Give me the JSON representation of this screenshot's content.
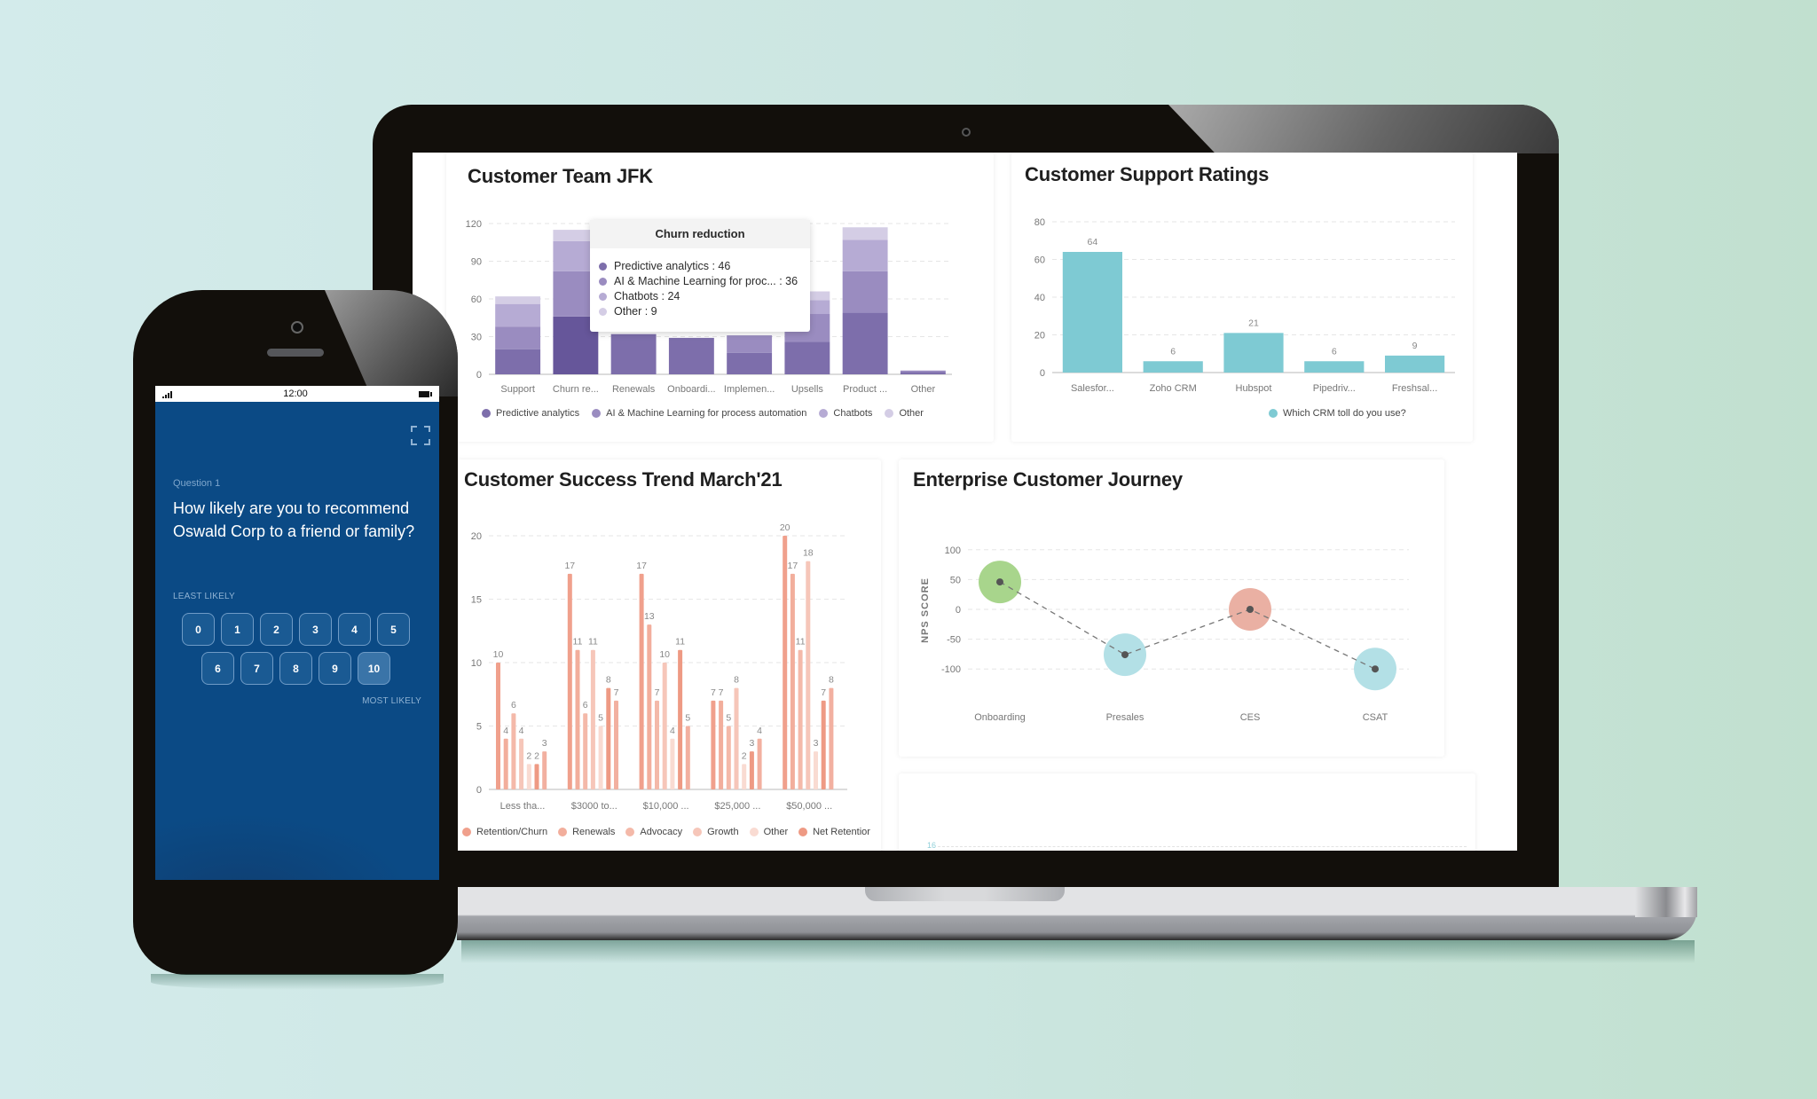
{
  "phone": {
    "status_bar": {
      "time": "12:00"
    },
    "question_label": "Question 1",
    "question_text": "How likely are you to recommend Oswald Corp to a friend or family?",
    "least_label": "LEAST LIKELY",
    "most_label": "MOST LIKELY",
    "scale": [
      "0",
      "1",
      "2",
      "3",
      "4",
      "5",
      "6",
      "7",
      "8",
      "9",
      "10"
    ],
    "selected": "10",
    "icons": {
      "signal": "signal-bars-icon",
      "battery": "battery-icon",
      "expand": "expand-fullscreen-icon"
    }
  },
  "dashboard": {
    "jfk": {
      "title": "Customer Team JFK",
      "tooltip": {
        "title": "Churn reduction",
        "lines": [
          "Predictive analytics : 46",
          "AI & Machine Learning for proc... : 36",
          "Chatbots : 24",
          "Other : 9"
        ]
      },
      "legend": [
        "Predictive analytics",
        "AI & Machine Learning for process automation",
        "Chatbots",
        "Other"
      ]
    },
    "support": {
      "title": "Customer Support Ratings",
      "legend": [
        "Which CRM toll do you use?"
      ]
    },
    "trend": {
      "title": "Customer Success Trend March'21",
      "legend": [
        "Retention/Churn",
        "Renewals",
        "Advocacy",
        "Growth",
        "Other",
        "Net Retentior"
      ]
    },
    "journey": {
      "title": "Enterprise Customer Journey",
      "ylabel": "NPS SCORE"
    },
    "partial_card": {
      "tick": "16"
    }
  },
  "colors": {
    "purple": [
      "#7d6eab",
      "#9a8cc0",
      "#b6abd4",
      "#d4cde5"
    ],
    "purple_active": "#66569a",
    "teal": "#7ecad3",
    "salmon": [
      "#f0a08c",
      "#f2ae9c",
      "#f4b9a9",
      "#f6c6b9",
      "#f9dbd2",
      "#ee9a84",
      "#f2b0a0"
    ],
    "journey": [
      "#a8d58c",
      "#b3e0e6",
      "#eab0a3",
      "#b3e0e6"
    ],
    "phone_bg": "#0b4a85"
  },
  "chart_data": [
    {
      "type": "bar",
      "stacked": true,
      "title": "Customer Team JFK",
      "categories": [
        "Support",
        "Churn re...",
        "Renewals",
        "Onboardi...",
        "Implemen...",
        "Upsells",
        "Product ...",
        "Other"
      ],
      "series": [
        {
          "name": "Predictive analytics",
          "values": [
            20,
            46,
            32,
            29,
            17,
            26,
            49,
            2
          ]
        },
        {
          "name": "AI & Machine Learning for process automation",
          "values": [
            18,
            36,
            0,
            0,
            14,
            22,
            33,
            1
          ]
        },
        {
          "name": "Chatbots",
          "values": [
            18,
            24,
            0,
            0,
            0,
            11,
            25,
            0
          ]
        },
        {
          "name": "Other",
          "values": [
            6,
            9,
            0,
            0,
            0,
            7,
            10,
            0
          ]
        }
      ],
      "yticks": [
        0,
        30,
        60,
        90,
        120
      ],
      "ylim": [
        0,
        120
      ],
      "grid": true,
      "legend_position": "bottom",
      "highlight": "Churn re..."
    },
    {
      "type": "bar",
      "title": "Customer Support Ratings",
      "categories": [
        "Salesfor...",
        "Zoho CRM",
        "Hubspot",
        "Pipedriv...",
        "Freshsal..."
      ],
      "series": [
        {
          "name": "Which CRM toll do you use?",
          "values": [
            64,
            6,
            21,
            6,
            9
          ]
        }
      ],
      "yticks": [
        0,
        20,
        40,
        60,
        80
      ],
      "ylim": [
        0,
        80
      ],
      "grid": true,
      "data_labels": true,
      "legend_position": "bottom"
    },
    {
      "type": "bar",
      "title": "Customer Success Trend March'21",
      "categories": [
        "Less tha...",
        "$3000 to...",
        "$10,000 ...",
        "$25,000 ...",
        "$50,000 ..."
      ],
      "series": [
        {
          "name": "Retention/Churn",
          "values": [
            10,
            17,
            17,
            7,
            20
          ]
        },
        {
          "name": "Renewals",
          "values": [
            4,
            11,
            13,
            7,
            17
          ]
        },
        {
          "name": "Advocacy",
          "values": [
            6,
            6,
            7,
            5,
            11
          ]
        },
        {
          "name": "Growth",
          "values": [
            4,
            11,
            10,
            8,
            18
          ]
        },
        {
          "name": "Other",
          "values": [
            2,
            5,
            4,
            2,
            3
          ]
        },
        {
          "name": "Net Retentior",
          "values": [
            2,
            8,
            11,
            3,
            7
          ]
        },
        {
          "name": "",
          "values": [
            3,
            7,
            5,
            4,
            8
          ]
        }
      ],
      "yticks": [
        0,
        5,
        10,
        15,
        20
      ],
      "ylim": [
        0,
        20
      ],
      "grid": true,
      "data_labels": true,
      "legend_position": "bottom"
    },
    {
      "type": "scatter",
      "title": "Enterprise Customer Journey",
      "categories": [
        "Onboarding",
        "Presales",
        "CES",
        "CSAT"
      ],
      "series": [
        {
          "name": "NPS",
          "values": [
            46,
            -76,
            0,
            -100
          ]
        }
      ],
      "ylabel": "NPS SCORE",
      "yticks": [
        -100,
        -50,
        0,
        50,
        100
      ],
      "ylim": [
        -100,
        100
      ],
      "grid": true,
      "connector": "dashed"
    }
  ]
}
